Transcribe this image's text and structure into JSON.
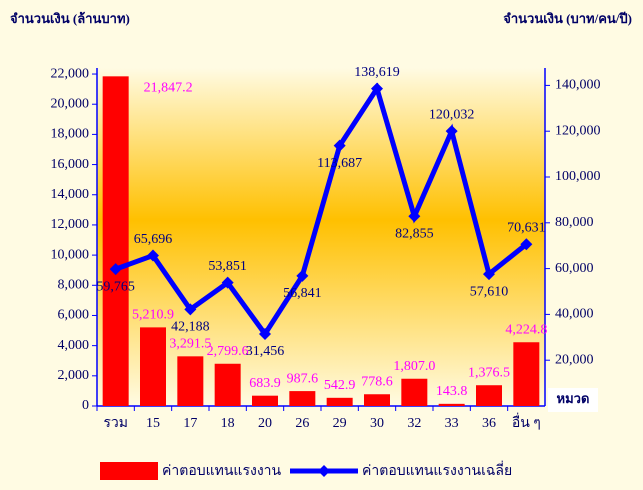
{
  "chart_data": {
    "type": "bar-line",
    "y_title": "จำนวนเงิน (ล้านบาท)",
    "y2_title": "จำนวนเงิน (บาท/คน/ปี)",
    "x_title": "หมวด",
    "categories": [
      "รวม",
      "15",
      "17",
      "18",
      "20",
      "26",
      "29",
      "30",
      "32",
      "33",
      "36",
      "อื่น ๆ"
    ],
    "series": [
      {
        "name": "ค่าตอบแทนแรงงาน",
        "type": "bar",
        "color": "#ff0000",
        "values": [
          21847.2,
          5210.9,
          3291.5,
          2799.6,
          683.9,
          987.6,
          542.9,
          778.6,
          1807.0,
          143.8,
          1376.5,
          4224.8
        ],
        "value_labels": [
          "21,847.2",
          "5,210.9",
          "3,291.5",
          "2,799.6",
          "683.9",
          "987.6",
          "542.9",
          "778.6",
          "1,807.0",
          "143.8",
          "1,376.5",
          "4,224.8"
        ]
      },
      {
        "name": "ค่าตอบแทนแรงงานเฉลี่ย",
        "type": "line",
        "axis": "y2",
        "color": "#0000ff",
        "values": [
          59765,
          65696,
          42188,
          53851,
          31456,
          56841,
          113687,
          138619,
          82855,
          120032,
          57610,
          70631
        ],
        "value_labels": [
          "59,765",
          "65,696",
          "42,188",
          "53,851",
          "31,456",
          "56,841",
          "113,687",
          "138,619",
          "82,855",
          "120,032",
          "57,610",
          "70,631"
        ]
      }
    ],
    "ylim": [
      0,
      22400
    ],
    "yticks": [
      0,
      {
        "value": 2000,
        "label": "2,000"
      },
      {
        "value": 4000,
        "label": "4,000"
      },
      {
        "value": 6000,
        "label": "6,000"
      },
      {
        "value": 8000,
        "label": "8,000"
      },
      {
        "value": 10000,
        "label": "10,000"
      },
      {
        "value": 12000,
        "label": "12,000"
      },
      {
        "value": 14000,
        "label": "14,000"
      },
      {
        "value": 16000,
        "label": "16,000"
      },
      {
        "value": 18000,
        "label": "18,000"
      },
      {
        "value": 20000,
        "label": "20,000"
      },
      {
        "value": 22000,
        "label": "22,000"
      }
    ],
    "y2lim": [
      0,
      147600
    ],
    "y2ticks": [
      {
        "value": 20000,
        "label": "20,000"
      },
      {
        "value": 40000,
        "label": "40,000"
      },
      {
        "value": 60000,
        "label": "60,000"
      },
      {
        "value": 80000,
        "label": "80,000"
      },
      {
        "value": 100000,
        "label": "100,000"
      },
      {
        "value": 120000,
        "label": "120,000"
      },
      {
        "value": 140000,
        "label": "140,000"
      }
    ]
  }
}
